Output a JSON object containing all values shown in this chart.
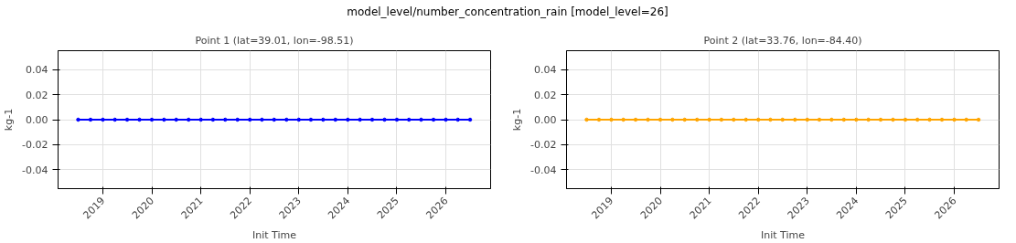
{
  "chart_data": [
    {
      "type": "line",
      "title": "Point 1 (lat=39.01, lon=-98.51)",
      "annotations": [
        "model_level/number_concentration_rain [model_level=26]"
      ],
      "xlabel": "Init Time",
      "ylabel": "kg-1",
      "x": [
        "2018-07",
        "2018-10",
        "2019-01",
        "2019-04",
        "2019-07",
        "2019-10",
        "2020-01",
        "2020-04",
        "2020-07",
        "2020-10",
        "2021-01",
        "2021-04",
        "2021-07",
        "2021-10",
        "2022-01",
        "2022-04",
        "2022-07",
        "2022-10",
        "2023-01",
        "2023-04",
        "2023-07",
        "2023-10",
        "2024-01",
        "2024-04",
        "2024-07",
        "2024-10",
        "2025-01",
        "2025-04",
        "2025-07",
        "2025-10",
        "2026-01",
        "2026-04",
        "2026-07"
      ],
      "series": [
        {
          "color": "#0000ff",
          "values": [
            0,
            0,
            0,
            0,
            0,
            0,
            0,
            0,
            0,
            0,
            0,
            0,
            0,
            0,
            0,
            0,
            0,
            0,
            0,
            0,
            0,
            0,
            0,
            0,
            0,
            0,
            0,
            0,
            0,
            0,
            0,
            0,
            0
          ]
        }
      ],
      "xlim": [
        "2018-02",
        "2026-12"
      ],
      "ylim": [
        -0.055,
        0.055
      ],
      "xticks": [
        {
          "value": "2019-01",
          "label": "2019"
        },
        {
          "value": "2020-01",
          "label": "2020"
        },
        {
          "value": "2021-01",
          "label": "2021"
        },
        {
          "value": "2022-01",
          "label": "2022"
        },
        {
          "value": "2023-01",
          "label": "2023"
        },
        {
          "value": "2024-01",
          "label": "2024"
        },
        {
          "value": "2025-01",
          "label": "2025"
        },
        {
          "value": "2026-01",
          "label": "2026"
        }
      ],
      "yticks": [
        {
          "value": -0.04,
          "label": "-0.04"
        },
        {
          "value": -0.02,
          "label": "-0.02"
        },
        {
          "value": 0,
          "label": "0.00"
        },
        {
          "value": 0.02,
          "label": "0.02"
        },
        {
          "value": 0.04,
          "label": "0.04"
        }
      ],
      "grid": true,
      "marker": "circle",
      "line_style": "solid"
    },
    {
      "type": "line",
      "title": "Point 2 (lat=33.76, lon=-84.40)",
      "xlabel": "Init Time",
      "ylabel": "kg-1",
      "x": [
        "2018-07",
        "2018-10",
        "2019-01",
        "2019-04",
        "2019-07",
        "2019-10",
        "2020-01",
        "2020-04",
        "2020-07",
        "2020-10",
        "2021-01",
        "2021-04",
        "2021-07",
        "2021-10",
        "2022-01",
        "2022-04",
        "2022-07",
        "2022-10",
        "2023-01",
        "2023-04",
        "2023-07",
        "2023-10",
        "2024-01",
        "2024-04",
        "2024-07",
        "2024-10",
        "2025-01",
        "2025-04",
        "2025-07",
        "2025-10",
        "2026-01",
        "2026-04",
        "2026-07"
      ],
      "series": [
        {
          "color": "#ffa500",
          "values": [
            0,
            0,
            0,
            0,
            0,
            0,
            0,
            0,
            0,
            0,
            0,
            0,
            0,
            0,
            0,
            0,
            0,
            0,
            0,
            0,
            0,
            0,
            0,
            0,
            0,
            0,
            0,
            0,
            0,
            0,
            0,
            0,
            0
          ]
        }
      ],
      "xlim": [
        "2018-02",
        "2026-12"
      ],
      "ylim": [
        -0.055,
        0.055
      ],
      "xticks": [
        {
          "value": "2019-01",
          "label": "2019"
        },
        {
          "value": "2020-01",
          "label": "2020"
        },
        {
          "value": "2021-01",
          "label": "2021"
        },
        {
          "value": "2022-01",
          "label": "2022"
        },
        {
          "value": "2023-01",
          "label": "2023"
        },
        {
          "value": "2024-01",
          "label": "2024"
        },
        {
          "value": "2025-01",
          "label": "2025"
        },
        {
          "value": "2026-01",
          "label": "2026"
        }
      ],
      "yticks": [
        {
          "value": -0.04,
          "label": "-0.04"
        },
        {
          "value": -0.02,
          "label": "-0.02"
        },
        {
          "value": 0,
          "label": "0.00"
        },
        {
          "value": 0.02,
          "label": "0.02"
        },
        {
          "value": 0.04,
          "label": "0.04"
        }
      ],
      "grid": true,
      "marker": "circle",
      "line_style": "solid"
    }
  ]
}
